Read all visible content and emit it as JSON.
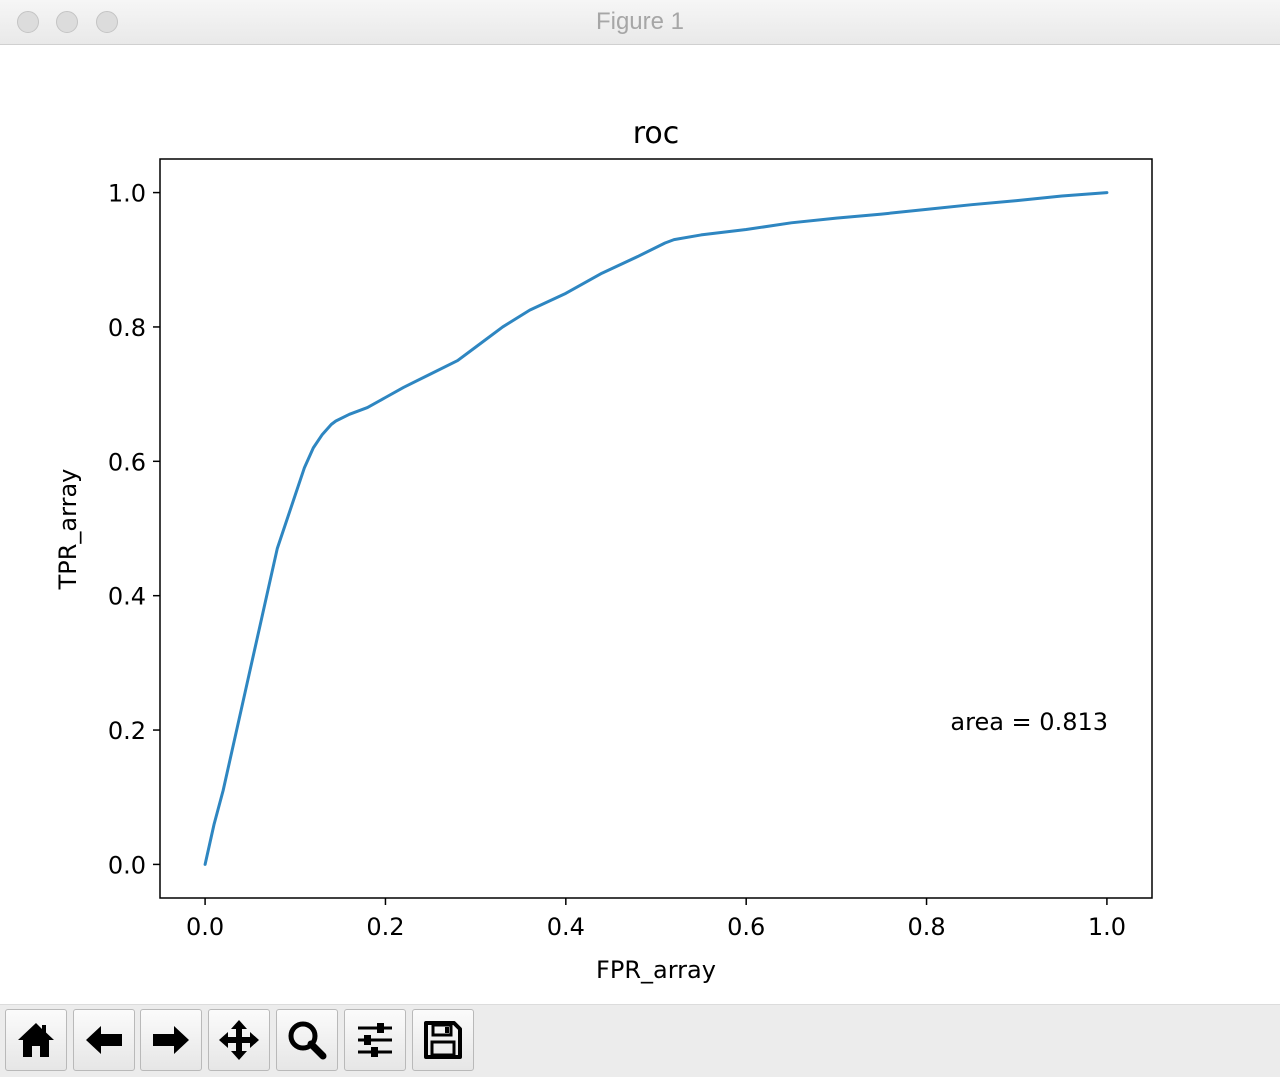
{
  "window": {
    "title": "Figure 1"
  },
  "toolbar": {
    "buttons": [
      {
        "name": "home-button",
        "icon": "home-icon"
      },
      {
        "name": "back-button",
        "icon": "arrow-left-icon"
      },
      {
        "name": "forward-button",
        "icon": "arrow-right-icon"
      },
      {
        "name": "pan-button",
        "icon": "move-icon"
      },
      {
        "name": "zoom-button",
        "icon": "magnifier-icon"
      },
      {
        "name": "subplots-button",
        "icon": "sliders-icon"
      },
      {
        "name": "save-button",
        "icon": "floppy-disk-icon"
      }
    ]
  },
  "chart_data": {
    "type": "line",
    "title": "roc",
    "xlabel": "FPR_array",
    "ylabel": "TPR_array",
    "xlim": [
      -0.05,
      1.05
    ],
    "ylim": [
      -0.05,
      1.05
    ],
    "xticks": [
      "0.0",
      "0.2",
      "0.4",
      "0.6",
      "0.8",
      "1.0"
    ],
    "yticks": [
      "0.0",
      "0.2",
      "0.4",
      "0.6",
      "0.8",
      "1.0"
    ],
    "grid": false,
    "annotation": "area = 0.813",
    "series": [
      {
        "color": "#2e86c1",
        "x": [
          0,
          0.005,
          0.01,
          0.02,
          0.03,
          0.04,
          0.05,
          0.06,
          0.07,
          0.08,
          0.09,
          0.1,
          0.11,
          0.12,
          0.13,
          0.14,
          0.145,
          0.16,
          0.18,
          0.2,
          0.22,
          0.25,
          0.28,
          0.3,
          0.33,
          0.36,
          0.4,
          0.44,
          0.48,
          0.51,
          0.52,
          0.55,
          0.6,
          0.65,
          0.7,
          0.75,
          0.8,
          0.85,
          0.9,
          0.95,
          1.0
        ],
        "y": [
          0,
          0.03,
          0.06,
          0.11,
          0.17,
          0.23,
          0.29,
          0.35,
          0.41,
          0.47,
          0.51,
          0.55,
          0.59,
          0.62,
          0.64,
          0.655,
          0.66,
          0.67,
          0.68,
          0.695,
          0.71,
          0.73,
          0.75,
          0.77,
          0.8,
          0.825,
          0.85,
          0.88,
          0.905,
          0.925,
          0.93,
          0.937,
          0.945,
          0.955,
          0.962,
          0.968,
          0.975,
          0.982,
          0.988,
          0.995,
          1.0
        ]
      }
    ]
  }
}
